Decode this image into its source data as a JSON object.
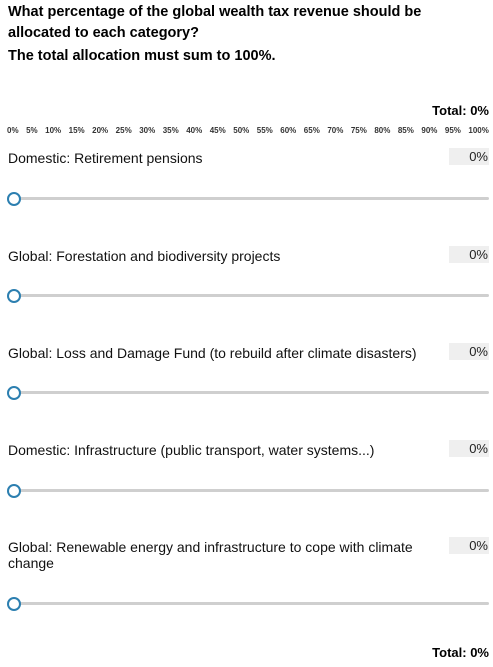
{
  "question": {
    "line1": "What percentage of the global wealth tax revenue should be",
    "line2": "allocated to each category?",
    "instruction": "The total allocation must sum to 100%."
  },
  "total_label_top": "Total: 0%",
  "total_label_bottom": "Total: 0%",
  "scale_labels": [
    "0%",
    "5%",
    "10%",
    "15%",
    "20%",
    "25%",
    "30%",
    "35%",
    "40%",
    "45%",
    "50%",
    "55%",
    "60%",
    "65%",
    "70%",
    "75%",
    "80%",
    "85%",
    "90%",
    "95%",
    "100%"
  ],
  "items": [
    {
      "label": "Domestic: Retirement pensions",
      "value": "0%",
      "slider_value": 0
    },
    {
      "label": "Global: Forestation and biodiversity projects",
      "value": "0%",
      "slider_value": 0
    },
    {
      "label": "Global: Loss and Damage Fund (to rebuild after climate disasters)",
      "value": "0%",
      "slider_value": 0
    },
    {
      "label": "Domestic: Infrastructure (public transport, water systems...)",
      "value": "0%",
      "slider_value": 0
    },
    {
      "label": "Global: Renewable energy and infrastructure to cope with climate change",
      "value": "0%",
      "slider_value": 0
    }
  ],
  "colors": {
    "thumb_border": "#2c7fb0",
    "track": "#cfcfcf",
    "value_box": "#efefef"
  }
}
